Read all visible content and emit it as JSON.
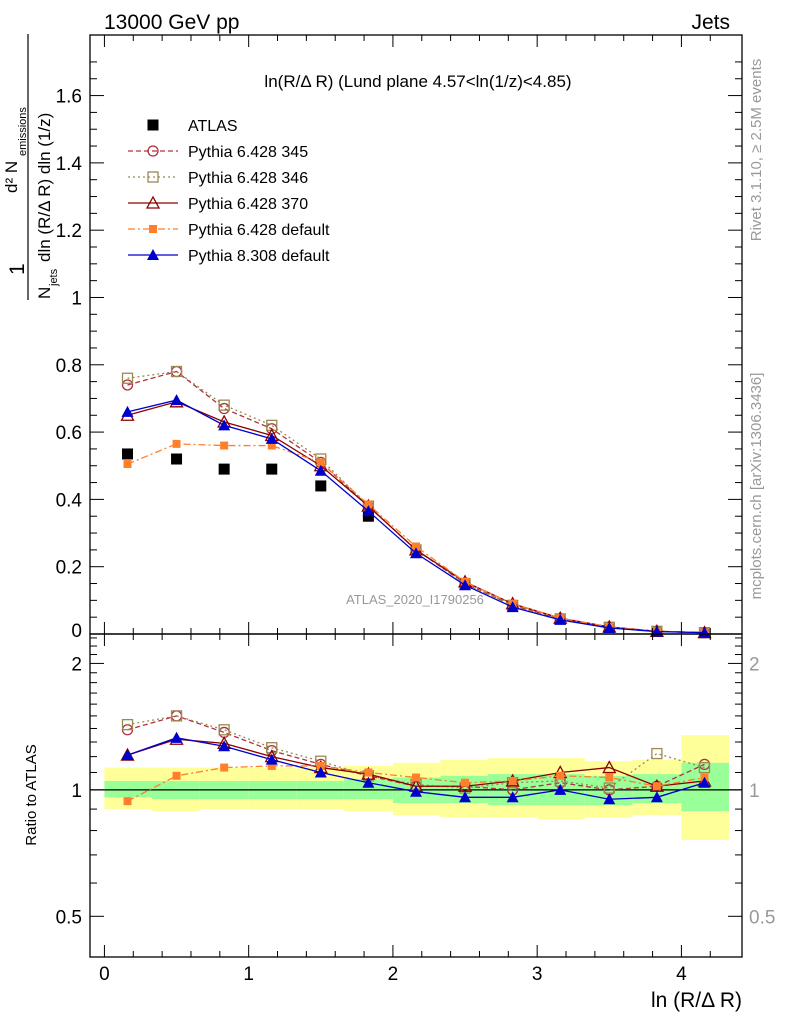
{
  "header": {
    "left": "13000 GeV pp",
    "right": "Jets",
    "plot_title": "ln(R/Δ R) (Lund plane 4.57<ln(1/z)<4.85)"
  },
  "side": {
    "rivet": "Rivet 3.1.10, ≥ 2.5M events",
    "mcplots": "mcplots.cern.ch [arXiv:1306.3436]"
  },
  "watermark": "ATLAS_2020_I1790256",
  "colors": {
    "atlas": "#000000",
    "p345": "#b03040",
    "p346": "#9a8a50",
    "p370": "#8b0000",
    "p6def": "#ff7f2a",
    "p8def": "#0000cc",
    "band_yellow": "#ffff99",
    "band_green": "#99ff99"
  },
  "chart_data": [
    {
      "type": "line",
      "xlabel": "ln (R/Δ R)",
      "ylabel": "1/N_jets d²N_emissions / dln(R/Δ R) dln(1/z)",
      "xlim": [
        -0.1,
        4.42
      ],
      "ylim": [
        0,
        1.78
      ],
      "xticks": [
        0,
        1,
        2,
        3,
        4
      ],
      "yticks": [
        0.2,
        0.4,
        0.6,
        0.8,
        1,
        1.2,
        1.4,
        1.6
      ],
      "y_labels_text": [
        "0",
        "0.2",
        "0.4",
        "0.6",
        "0.8",
        "1",
        "1.2",
        "1.4",
        "1.6"
      ],
      "x": [
        0.16,
        0.5,
        0.83,
        1.16,
        1.5,
        1.83,
        2.16,
        2.5,
        2.83,
        3.16,
        3.5,
        3.83,
        4.16
      ],
      "legend": [
        "ATLAS",
        "Pythia 6.428 345",
        "Pythia 6.428 346",
        "Pythia 6.428 370",
        "Pythia 6.428 default",
        "Pythia 8.308 default"
      ],
      "series": [
        {
          "name": "ATLAS",
          "key": "atlas",
          "values": [
            0.535,
            0.52,
            0.49,
            0.49,
            0.44,
            0.35,
            null,
            null,
            null,
            null,
            null,
            null,
            null
          ]
        },
        {
          "name": "Pythia 6.428 345",
          "key": "p345",
          "values": [
            0.74,
            0.78,
            0.67,
            0.61,
            0.51,
            0.38,
            0.25,
            0.15,
            0.085,
            0.045,
            0.02,
            0.008,
            0.004
          ]
        },
        {
          "name": "Pythia 6.428 346",
          "key": "p346",
          "values": [
            0.76,
            0.78,
            0.68,
            0.62,
            0.52,
            0.38,
            0.25,
            0.15,
            0.085,
            0.045,
            0.02,
            0.008,
            0.004
          ]
        },
        {
          "name": "Pythia 6.428 370",
          "key": "p370",
          "values": [
            0.65,
            0.69,
            0.63,
            0.59,
            0.5,
            0.38,
            0.25,
            0.155,
            0.09,
            0.047,
            0.021,
            0.008,
            0.004
          ]
        },
        {
          "name": "Pythia 6.428 default",
          "key": "p6def",
          "values": [
            0.505,
            0.565,
            0.56,
            0.56,
            0.51,
            0.385,
            0.26,
            0.155,
            0.09,
            0.047,
            0.021,
            0.008,
            0.004
          ]
        },
        {
          "name": "Pythia 8.308 default",
          "key": "p8def",
          "values": [
            0.66,
            0.695,
            0.62,
            0.58,
            0.485,
            0.365,
            0.24,
            0.145,
            0.08,
            0.042,
            0.018,
            0.007,
            0.004
          ]
        }
      ]
    },
    {
      "type": "line",
      "xlabel": "ln (R/Δ R)",
      "ylabel": "Ratio to ATLAS",
      "log_scale_y": true,
      "ylim": [
        0.4,
        2.35
      ],
      "yticks": [
        0.5,
        1,
        2
      ],
      "xticks": [
        0,
        1,
        2,
        3,
        4
      ],
      "x": [
        0.16,
        0.5,
        0.83,
        1.16,
        1.5,
        1.83,
        2.16,
        2.5,
        2.83,
        3.16,
        3.5,
        3.83,
        4.16
      ],
      "bands": {
        "edges": [
          0,
          0.33,
          0.66,
          1.0,
          1.33,
          1.66,
          2.0,
          2.33,
          2.66,
          3.0,
          3.33,
          3.66,
          4.0,
          4.33
        ],
        "yellow_lo": [
          0.9,
          0.89,
          0.9,
          0.9,
          0.9,
          0.89,
          0.87,
          0.86,
          0.86,
          0.85,
          0.86,
          0.87,
          0.76
        ],
        "yellow_hi": [
          1.13,
          1.13,
          1.13,
          1.13,
          1.13,
          1.14,
          1.16,
          1.18,
          1.19,
          1.19,
          1.17,
          1.18,
          1.35
        ],
        "green_lo": [
          0.96,
          0.95,
          0.95,
          0.95,
          0.95,
          0.95,
          0.93,
          0.93,
          0.92,
          0.92,
          0.92,
          0.93,
          0.89
        ],
        "green_hi": [
          1.05,
          1.05,
          1.05,
          1.05,
          1.05,
          1.06,
          1.07,
          1.08,
          1.09,
          1.09,
          1.08,
          1.09,
          1.16
        ]
      },
      "series": [
        {
          "name": "Pythia 6.428 345",
          "key": "p345",
          "values": [
            1.39,
            1.5,
            1.37,
            1.24,
            1.15,
            1.08,
            1.02,
            1.02,
            1.0,
            1.04,
            1.0,
            1.02,
            1.15
          ]
        },
        {
          "name": "Pythia 6.428 346",
          "key": "p346",
          "values": [
            1.43,
            1.5,
            1.39,
            1.26,
            1.17,
            1.08,
            1.03,
            1.01,
            1.04,
            1.05,
            1.01,
            1.22,
            1.13
          ]
        },
        {
          "name": "Pythia 6.428 370",
          "key": "p370",
          "values": [
            1.21,
            1.32,
            1.29,
            1.2,
            1.13,
            1.09,
            1.02,
            1.02,
            1.05,
            1.1,
            1.13,
            1.02,
            1.05
          ]
        },
        {
          "name": "Pythia 6.428 default",
          "key": "p6def",
          "values": [
            0.94,
            1.08,
            1.13,
            1.14,
            1.14,
            1.1,
            1.07,
            1.04,
            1.05,
            1.08,
            1.07,
            1.02,
            1.07
          ]
        },
        {
          "name": "Pythia 8.308 default",
          "key": "p8def",
          "values": [
            1.21,
            1.33,
            1.27,
            1.18,
            1.1,
            1.04,
            0.99,
            0.96,
            0.96,
            1.0,
            0.95,
            0.96,
            1.04
          ]
        }
      ]
    }
  ]
}
